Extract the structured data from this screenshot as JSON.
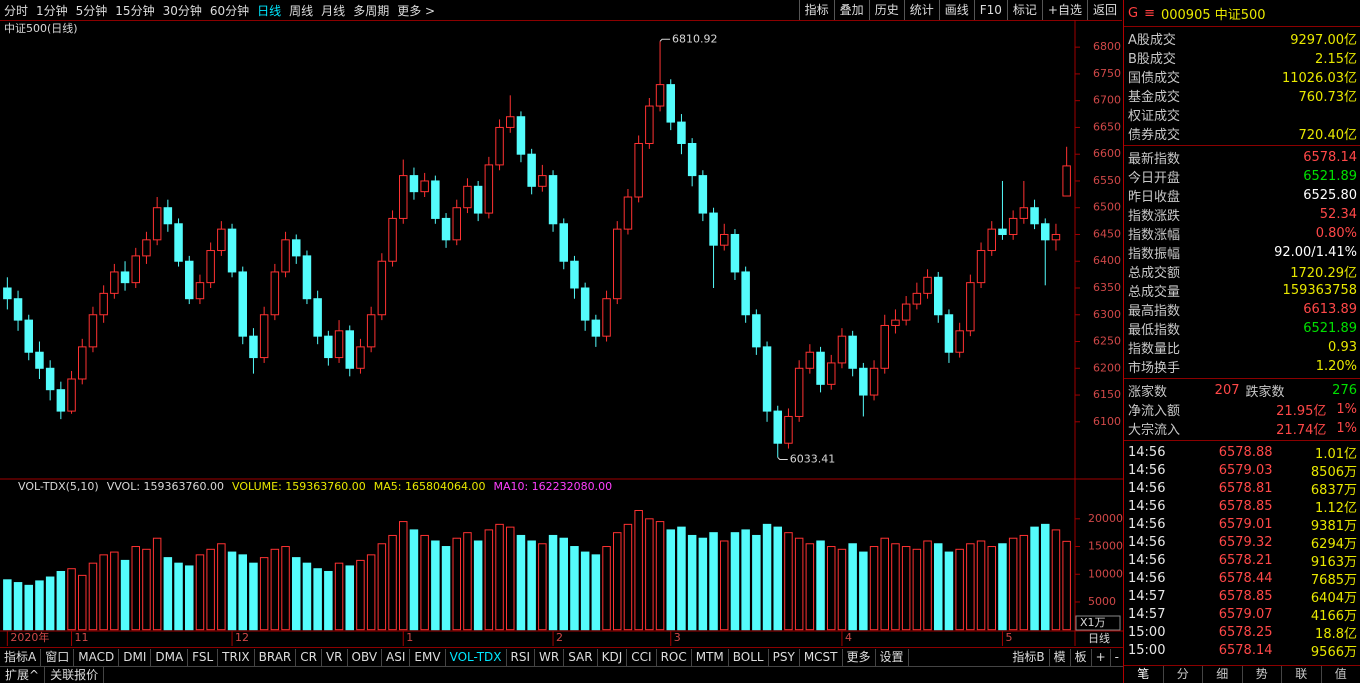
{
  "toolbar": {
    "periods": [
      "分时",
      "1分钟",
      "5分钟",
      "15分钟",
      "30分钟",
      "60分钟",
      "日线",
      "周线",
      "月线",
      "多周期",
      "更多 >"
    ],
    "active_period": 6,
    "tools": [
      "指标",
      "叠加",
      "历史",
      "统计",
      "画线",
      "F10",
      "标记",
      "+自选",
      "返回"
    ]
  },
  "chart_data": [
    {
      "type": "candlestick",
      "title": "中证500(日线)",
      "up_color": "#ff3232",
      "down_color": "#54fcfc",
      "ylim": [
        5995,
        6847
      ],
      "yticks": [
        6100,
        6150,
        6200,
        6250,
        6300,
        6350,
        6400,
        6450,
        6500,
        6550,
        6600,
        6650,
        6700,
        6750,
        6800
      ],
      "categories": [
        "2020年",
        null,
        null,
        null,
        null,
        null,
        "11",
        null,
        null,
        null,
        null,
        null,
        null,
        null,
        null,
        null,
        null,
        null,
        null,
        null,
        null,
        "12",
        null,
        null,
        null,
        null,
        null,
        null,
        null,
        null,
        null,
        null,
        null,
        null,
        null,
        null,
        null,
        "1",
        null,
        null,
        null,
        null,
        null,
        null,
        null,
        null,
        null,
        null,
        null,
        null,
        null,
        "2",
        null,
        null,
        null,
        null,
        null,
        null,
        null,
        null,
        null,
        null,
        "3",
        null,
        null,
        null,
        null,
        null,
        null,
        null,
        null,
        null,
        null,
        null,
        null,
        null,
        null,
        null,
        "4",
        null,
        null,
        null,
        null,
        null,
        null,
        null,
        null,
        null,
        null,
        null,
        null,
        null,
        null,
        "5",
        null,
        null,
        null,
        null,
        null,
        null
      ],
      "values": [
        [
          6350,
          6370,
          6310,
          6330
        ],
        [
          6330,
          6345,
          6270,
          6290
        ],
        [
          6290,
          6300,
          6215,
          6230
        ],
        [
          6230,
          6250,
          6180,
          6200
        ],
        [
          6200,
          6215,
          6140,
          6160
        ],
        [
          6160,
          6175,
          6105,
          6120
        ],
        [
          6120,
          6195,
          6115,
          6180
        ],
        [
          6180,
          6255,
          6170,
          6240
        ],
        [
          6240,
          6315,
          6230,
          6300
        ],
        [
          6300,
          6355,
          6285,
          6340
        ],
        [
          6340,
          6395,
          6330,
          6380
        ],
        [
          6380,
          6400,
          6345,
          6360
        ],
        [
          6360,
          6425,
          6350,
          6410
        ],
        [
          6410,
          6455,
          6395,
          6440
        ],
        [
          6440,
          6520,
          6430,
          6500
        ],
        [
          6500,
          6515,
          6455,
          6470
        ],
        [
          6470,
          6480,
          6390,
          6400
        ],
        [
          6400,
          6410,
          6320,
          6330
        ],
        [
          6330,
          6375,
          6320,
          6360
        ],
        [
          6360,
          6435,
          6350,
          6420
        ],
        [
          6420,
          6475,
          6410,
          6460
        ],
        [
          6460,
          6470,
          6370,
          6380
        ],
        [
          6380,
          6390,
          6245,
          6260
        ],
        [
          6260,
          6275,
          6190,
          6220
        ],
        [
          6220,
          6315,
          6210,
          6300
        ],
        [
          6300,
          6395,
          6290,
          6380
        ],
        [
          6380,
          6455,
          6370,
          6440
        ],
        [
          6440,
          6450,
          6395,
          6410
        ],
        [
          6410,
          6420,
          6320,
          6330
        ],
        [
          6330,
          6345,
          6245,
          6260
        ],
        [
          6260,
          6270,
          6205,
          6220
        ],
        [
          6220,
          6290,
          6210,
          6270
        ],
        [
          6270,
          6280,
          6185,
          6200
        ],
        [
          6200,
          6255,
          6190,
          6240
        ],
        [
          6240,
          6315,
          6230,
          6300
        ],
        [
          6300,
          6415,
          6290,
          6400
        ],
        [
          6400,
          6495,
          6390,
          6480
        ],
        [
          6480,
          6590,
          6470,
          6560
        ],
        [
          6560,
          6575,
          6515,
          6530
        ],
        [
          6530,
          6565,
          6520,
          6550
        ],
        [
          6550,
          6560,
          6470,
          6480
        ],
        [
          6480,
          6490,
          6425,
          6440
        ],
        [
          6440,
          6515,
          6430,
          6500
        ],
        [
          6500,
          6555,
          6490,
          6540
        ],
        [
          6540,
          6550,
          6475,
          6490
        ],
        [
          6490,
          6595,
          6480,
          6580
        ],
        [
          6580,
          6665,
          6570,
          6650
        ],
        [
          6650,
          6710,
          6640,
          6670
        ],
        [
          6670,
          6680,
          6585,
          6600
        ],
        [
          6600,
          6610,
          6525,
          6540
        ],
        [
          6540,
          6580,
          6530,
          6560
        ],
        [
          6560,
          6570,
          6455,
          6470
        ],
        [
          6470,
          6480,
          6385,
          6400
        ],
        [
          6400,
          6410,
          6330,
          6350
        ],
        [
          6350,
          6360,
          6270,
          6290
        ],
        [
          6290,
          6300,
          6240,
          6260
        ],
        [
          6260,
          6345,
          6250,
          6330
        ],
        [
          6330,
          6475,
          6320,
          6460
        ],
        [
          6460,
          6535,
          6450,
          6520
        ],
        [
          6520,
          6635,
          6510,
          6620
        ],
        [
          6620,
          6705,
          6610,
          6690
        ],
        [
          6690,
          6810.92,
          6680,
          6730
        ],
        [
          6730,
          6740,
          6645,
          6660
        ],
        [
          6660,
          6675,
          6600,
          6620
        ],
        [
          6620,
          6630,
          6540,
          6560
        ],
        [
          6560,
          6570,
          6475,
          6490
        ],
        [
          6490,
          6500,
          6350,
          6430
        ],
        [
          6430,
          6470,
          6420,
          6450
        ],
        [
          6450,
          6460,
          6365,
          6380
        ],
        [
          6380,
          6390,
          6285,
          6300
        ],
        [
          6300,
          6310,
          6225,
          6240
        ],
        [
          6240,
          6250,
          6100,
          6120
        ],
        [
          6120,
          6130,
          6033.41,
          6060
        ],
        [
          6060,
          6125,
          6050,
          6110
        ],
        [
          6110,
          6215,
          6100,
          6200
        ],
        [
          6200,
          6245,
          6190,
          6230
        ],
        [
          6230,
          6240,
          6155,
          6170
        ],
        [
          6170,
          6225,
          6160,
          6210
        ],
        [
          6210,
          6275,
          6200,
          6260
        ],
        [
          6260,
          6270,
          6185,
          6200
        ],
        [
          6200,
          6210,
          6110,
          6150
        ],
        [
          6150,
          6215,
          6140,
          6200
        ],
        [
          6200,
          6300,
          6190,
          6280
        ],
        [
          6280,
          6310,
          6265,
          6290
        ],
        [
          6290,
          6335,
          6280,
          6320
        ],
        [
          6320,
          6360,
          6310,
          6340
        ],
        [
          6340,
          6385,
          6330,
          6370
        ],
        [
          6370,
          6380,
          6285,
          6300
        ],
        [
          6300,
          6310,
          6210,
          6230
        ],
        [
          6230,
          6285,
          6220,
          6270
        ],
        [
          6270,
          6375,
          6260,
          6360
        ],
        [
          6360,
          6435,
          6350,
          6420
        ],
        [
          6420,
          6475,
          6410,
          6460
        ],
        [
          6460,
          6550,
          6440,
          6450
        ],
        [
          6450,
          6495,
          6440,
          6480
        ],
        [
          6480,
          6550,
          6470,
          6500
        ],
        [
          6500,
          6515,
          6460,
          6470
        ],
        [
          6470,
          6480,
          6355,
          6440
        ],
        [
          6440,
          6470,
          6420,
          6450
        ],
        [
          6521.89,
          6613.89,
          6521.89,
          6578.14
        ]
      ]
    },
    {
      "type": "bar",
      "ylim": [
        0,
        27000
      ],
      "yticks": [
        5000,
        10000,
        15000,
        20000
      ],
      "y_unit": "X1万",
      "period_label": "日线",
      "legend": [
        {
          "text": "VOL-TDX(5,10)",
          "color": "#d8d8d8"
        },
        {
          "text": "VVOL: 159363760.00",
          "color": "#d8d8d8"
        },
        {
          "text": "VOLUME: 159363760.00",
          "color": "#e8e800"
        },
        {
          "text": "MA5: 165804064.00",
          "color": "#e8e800"
        },
        {
          "text": "MA10: 162232080.00",
          "color": "#ff40ff"
        }
      ],
      "values": [
        9000,
        8500,
        8000,
        8800,
        9500,
        10500,
        11000,
        9800,
        12000,
        13500,
        14000,
        12500,
        15000,
        14500,
        16500,
        13000,
        12000,
        11500,
        13500,
        14500,
        15500,
        14000,
        13500,
        12000,
        13000,
        14500,
        15000,
        13000,
        12000,
        11000,
        10500,
        12000,
        11500,
        12500,
        13500,
        15500,
        17000,
        19500,
        18000,
        17000,
        16000,
        15000,
        16500,
        17500,
        16000,
        18000,
        19000,
        18500,
        17000,
        16000,
        15500,
        17000,
        16500,
        15000,
        14000,
        13500,
        15000,
        17500,
        19000,
        21500,
        20000,
        19500,
        18000,
        18500,
        17000,
        16500,
        17500,
        16000,
        17500,
        18000,
        17000,
        19000,
        18500,
        17500,
        16500,
        15500,
        16000,
        15000,
        14500,
        15500,
        14000,
        15000,
        16500,
        15500,
        15000,
        14500,
        16000,
        15500,
        14000,
        14500,
        15500,
        16000,
        15000,
        15500,
        16500,
        17000,
        18500,
        19000,
        18000,
        15936.376
      ]
    }
  ],
  "indicator_bar": {
    "left": [
      "指标A",
      "窗口",
      "MACD",
      "DMI",
      "DMA",
      "FSL",
      "TRIX",
      "BRAR",
      "CR",
      "VR",
      "OBV",
      "ASI",
      "EMV",
      "VOL-TDX",
      "RSI",
      "WR",
      "SAR",
      "KDJ",
      "CCI",
      "ROC",
      "MTM",
      "BOLL",
      "PSY",
      "MCST",
      "更多",
      "设置"
    ],
    "active": 13,
    "right": [
      "指标B",
      "模",
      "板",
      "+",
      "-"
    ],
    "row2": [
      "扩展^",
      "关联报价"
    ]
  },
  "quote": {
    "marker": "G",
    "menu": "≡",
    "code": "000905 中证500",
    "turnover": [
      {
        "label": "A股成交",
        "value": "9297.00亿"
      },
      {
        "label": "B股成交",
        "value": "2.15亿"
      },
      {
        "label": "国债成交",
        "value": "11026.03亿"
      },
      {
        "label": "基金成交",
        "value": "760.73亿"
      },
      {
        "label": "权证成交"
      },
      {
        "label": "债券成交",
        "value": "720.40亿"
      }
    ],
    "index": [
      {
        "label": "最新指数",
        "value": "6578.14",
        "color": "#ff4848"
      },
      {
        "label": "今日开盘",
        "value": "6521.89",
        "color": "#00e000"
      },
      {
        "label": "昨日收盘",
        "value": "6525.80",
        "color": "#ffffff"
      },
      {
        "label": "指数涨跌",
        "value": "52.34",
        "color": "#ff4848"
      },
      {
        "label": "指数涨幅",
        "value": "0.80%",
        "color": "#ff4848"
      },
      {
        "label": "指数振幅",
        "value": "92.00/1.41%",
        "color": "#ffffff"
      },
      {
        "label": "总成交额",
        "value": "1720.29亿",
        "color": "#e8e800"
      },
      {
        "label": "总成交量",
        "value": "159363758",
        "color": "#e8e800"
      },
      {
        "label": "最高指数",
        "value": "6613.89",
        "color": "#ff4848"
      },
      {
        "label": "最低指数",
        "value": "6521.89",
        "color": "#00e000"
      },
      {
        "label": "指数量比",
        "value": "0.93",
        "color": "#e8e800"
      },
      {
        "label": "市场换手",
        "value": "1.20%",
        "color": "#e8e800"
      }
    ],
    "breadth": {
      "up_label": "涨家数",
      "up": 207,
      "down_label": "跌家数",
      "down": 276
    },
    "flows": [
      {
        "label": "净流入额",
        "value": "21.95亿",
        "pct": "1%"
      },
      {
        "label": "大宗流入",
        "value": "21.74亿",
        "pct": "1%"
      }
    ],
    "ticks": [
      {
        "time": "14:56",
        "price": "6578.88",
        "volume": "1.01亿"
      },
      {
        "time": "14:56",
        "price": "6579.03",
        "volume": "8506万"
      },
      {
        "time": "14:56",
        "price": "6578.81",
        "volume": "6837万"
      },
      {
        "time": "14:56",
        "price": "6578.85",
        "volume": "1.12亿"
      },
      {
        "time": "14:56",
        "price": "6579.01",
        "volume": "9381万"
      },
      {
        "time": "14:56",
        "price": "6579.32",
        "volume": "6294万"
      },
      {
        "time": "14:56",
        "price": "6578.21",
        "volume": "9163万"
      },
      {
        "time": "14:56",
        "price": "6578.44",
        "volume": "7685万"
      },
      {
        "time": "14:57",
        "price": "6578.85",
        "volume": "6404万"
      },
      {
        "time": "14:57",
        "price": "6579.07",
        "volume": "4166万"
      },
      {
        "time": "15:00",
        "price": "6578.25",
        "volume": "18.8亿"
      },
      {
        "time": "15:00",
        "price": "6578.14",
        "volume": "9566万"
      }
    ],
    "tabs": [
      "笔",
      "分",
      "细",
      "势",
      "联",
      "值"
    ]
  }
}
